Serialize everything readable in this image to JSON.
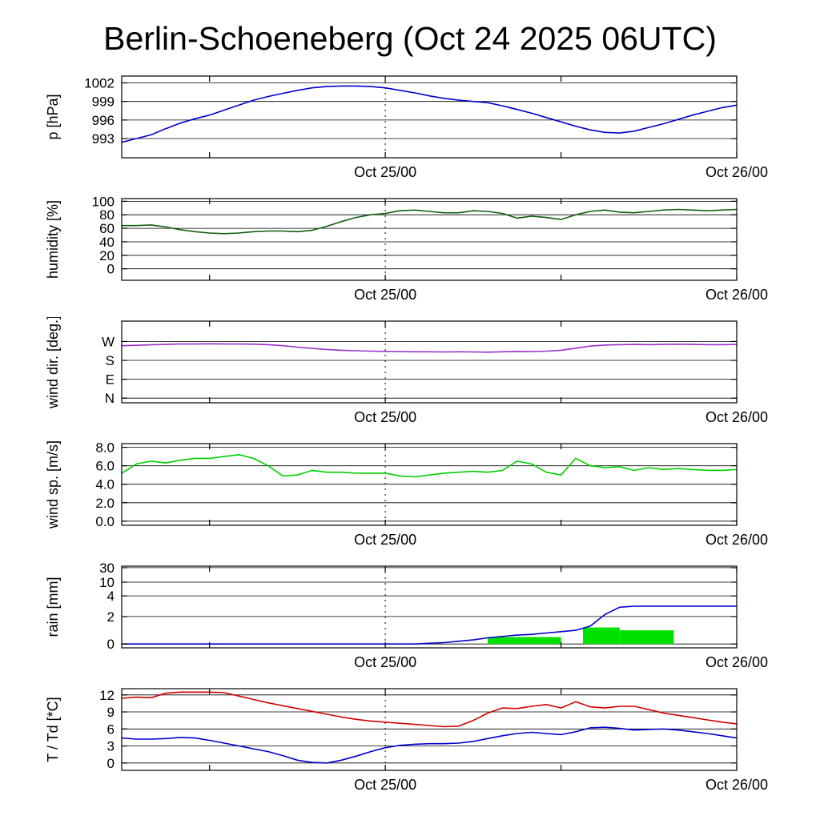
{
  "title": "Berlin-Schoeneberg (Oct 24 2025 06UTC)",
  "chart_data": {
    "type": "line",
    "station": "Berlin-Schoeneberg",
    "run_label": "Oct 24 2025 06UTC",
    "x_range": [
      0,
      42
    ],
    "x_ticks": [
      {
        "h": 6,
        "label": ""
      },
      {
        "h": 18,
        "label": "Oct 25/00"
      },
      {
        "h": 30,
        "label": ""
      },
      {
        "h": 42,
        "label": "Oct 26/00"
      }
    ],
    "dashed_line_h": 18,
    "panels": [
      {
        "name": "pressure",
        "ylabel": "p [hPa]",
        "ylim": [
          989.9,
          1003.1
        ],
        "yticks": [
          {
            "v": 993,
            "label": "993"
          },
          {
            "v": 996,
            "label": "996"
          },
          {
            "v": 999,
            "label": "999"
          },
          {
            "v": 1002,
            "label": "1002"
          }
        ],
        "series": [
          {
            "name": "pressure",
            "color": "#0000cc",
            "values": [
              992.4,
              993.0,
              993.6,
              994.6,
              995.5,
              996.2,
              996.8,
              997.6,
              998.4,
              999.2,
              999.8,
              1000.3,
              1000.8,
              1001.2,
              1001.4,
              1001.5,
              1001.5,
              1001.4,
              1001.2,
              1000.8,
              1000.4,
              999.9,
              999.5,
              999.2,
              999.0,
              998.8,
              998.3,
              997.7,
              997.1,
              996.4,
              995.7,
              995.0,
              994.4,
              994.0,
              993.9,
              994.2,
              994.8,
              995.4,
              996.1,
              996.8,
              997.4,
              998.0,
              998.4
            ]
          }
        ]
      },
      {
        "name": "humidity",
        "ylabel": "humidity [%]",
        "ylim": [
          -17,
          104
        ],
        "yticks": [
          {
            "v": 0,
            "label": "0"
          },
          {
            "v": 20,
            "label": "20"
          },
          {
            "v": 40,
            "label": "40"
          },
          {
            "v": 60,
            "label": "60"
          },
          {
            "v": 80,
            "label": "80"
          },
          {
            "v": 100,
            "label": "100"
          }
        ],
        "series": [
          {
            "name": "humidity",
            "color": "#0f5f0f",
            "values": [
              64,
              64,
              65,
              62,
              58,
              55,
              53,
              52,
              53,
              55,
              56,
              56,
              55,
              57,
              63,
              70,
              76,
              80,
              82,
              86,
              87,
              85,
              83,
              83,
              86,
              85,
              82,
              75,
              78,
              76,
              73,
              80,
              85,
              87,
              84,
              83,
              85,
              87,
              88,
              87,
              86,
              87,
              88
            ]
          }
        ]
      },
      {
        "name": "wind_direction",
        "ylabel": "wind dir. [deg.]",
        "ylim": [
          -22,
          367
        ],
        "yticks": [
          {
            "v": 0,
            "label": "N"
          },
          {
            "v": 90,
            "label": "E"
          },
          {
            "v": 180,
            "label": "S"
          },
          {
            "v": 270,
            "label": "W"
          }
        ],
        "series": [
          {
            "name": "wind-direction",
            "color": "#9932cc",
            "values": [
              250,
              252,
              254,
              256,
              258,
              258,
              259,
              258,
              258,
              257,
              255,
              250,
              243,
              237,
              232,
              228,
              226,
              224,
              223,
              222,
              221,
              221,
              220,
              221,
              220,
              219,
              221,
              223,
              222,
              224,
              228,
              238,
              248,
              253,
              255,
              256,
              255,
              256,
              257,
              256,
              255,
              255,
              256
            ]
          }
        ]
      },
      {
        "name": "wind_speed",
        "ylabel": "wind sp. [m/s]",
        "ylim": [
          -0.45,
          8.4
        ],
        "yticks": [
          {
            "v": 0,
            "label": "0.0"
          },
          {
            "v": 2,
            "label": "2.0"
          },
          {
            "v": 4,
            "label": "4.0"
          },
          {
            "v": 6,
            "label": "6.0"
          },
          {
            "v": 8,
            "label": "8.0"
          }
        ],
        "series": [
          {
            "name": "wind-speed",
            "color": "#00d000",
            "values": [
              5.2,
              6.2,
              6.5,
              6.3,
              6.6,
              6.8,
              6.8,
              7.0,
              7.2,
              6.8,
              6.0,
              4.9,
              5.0,
              5.5,
              5.3,
              5.3,
              5.2,
              5.2,
              5.2,
              4.9,
              4.8,
              5.0,
              5.2,
              5.3,
              5.4,
              5.3,
              5.5,
              6.5,
              6.2,
              5.3,
              5.0,
              6.8,
              6.0,
              5.8,
              5.9,
              5.5,
              5.8,
              5.6,
              5.7,
              5.6,
              5.5,
              5.5,
              5.6
            ]
          }
        ]
      },
      {
        "name": "rain",
        "ylabel": "rain [mm]",
        "scale": "piecewise",
        "scale_points": [
          [
            0,
            0.047
          ],
          [
            2,
            0.383
          ],
          [
            4,
            0.636
          ],
          [
            10,
            0.804
          ],
          [
            30,
            0.981
          ]
        ],
        "yticks": [
          {
            "v": 0,
            "label": "0"
          },
          {
            "v": 2,
            "label": "2"
          },
          {
            "v": 4,
            "label": "4"
          },
          {
            "v": 10,
            "label": "10"
          },
          {
            "v": 30,
            "label": "30"
          }
        ],
        "bar_color": "#00e000",
        "bars": [
          {
            "from_h": 25,
            "to_h": 30,
            "value": 0.5
          },
          {
            "from_h": 31.5,
            "to_h": 34,
            "value": 1.2
          },
          {
            "from_h": 34,
            "to_h": 37.7,
            "value": 1.0
          }
        ],
        "series": [
          {
            "name": "accumulated-rain",
            "color": "#0000cc",
            "values": [
              0,
              0,
              0,
              0,
              0,
              0,
              0,
              0,
              0,
              0,
              0,
              0,
              0,
              0,
              0,
              0,
              0,
              0,
              0,
              0,
              0,
              0.05,
              0.1,
              0.2,
              0.3,
              0.45,
              0.55,
              0.65,
              0.7,
              0.8,
              0.9,
              1.0,
              1.3,
              2.2,
              2.9,
              3.0,
              3.0,
              3.0,
              3.0,
              3.0,
              3.0,
              3.0,
              3.0
            ]
          }
        ]
      },
      {
        "name": "temperature",
        "ylabel": "T / Td [*C]",
        "ylim": [
          -1.3,
          13.1
        ],
        "yticks": [
          {
            "v": 0,
            "label": "0"
          },
          {
            "v": 3,
            "label": "3"
          },
          {
            "v": 6,
            "label": "6"
          },
          {
            "v": 9,
            "label": "9"
          },
          {
            "v": 12,
            "label": "12"
          }
        ],
        "series": [
          {
            "name": "temperature",
            "color": "#d40000",
            "values": [
              11.4,
              11.6,
              11.5,
              12.3,
              12.5,
              12.5,
              12.5,
              12.4,
              11.8,
              11.2,
              10.6,
              10.1,
              9.6,
              9.1,
              8.6,
              8.1,
              7.7,
              7.4,
              7.2,
              7.0,
              6.8,
              6.6,
              6.4,
              6.5,
              7.5,
              8.8,
              9.7,
              9.6,
              10.0,
              10.3,
              9.7,
              10.8,
              9.9,
              9.7,
              10.0,
              10.0,
              9.4,
              8.8,
              8.4,
              8.0,
              7.6,
              7.2,
              6.9
            ]
          },
          {
            "name": "dew-point",
            "color": "#0000cc",
            "values": [
              4.4,
              4.2,
              4.2,
              4.3,
              4.5,
              4.4,
              4.0,
              3.5,
              3.0,
              2.5,
              2.0,
              1.3,
              0.5,
              0.1,
              0.0,
              0.5,
              1.2,
              2.0,
              2.7,
              3.1,
              3.3,
              3.4,
              3.4,
              3.5,
              3.8,
              4.3,
              4.8,
              5.2,
              5.4,
              5.2,
              5.0,
              5.5,
              6.2,
              6.3,
              6.1,
              5.8,
              5.9,
              6.0,
              5.8,
              5.5,
              5.2,
              4.8,
              4.4
            ]
          }
        ]
      }
    ]
  }
}
